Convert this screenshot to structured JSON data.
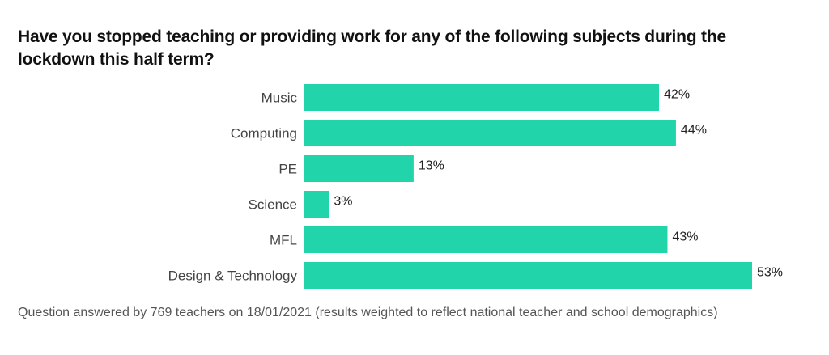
{
  "chart_data": {
    "type": "bar",
    "orientation": "horizontal",
    "title": "Have you stopped teaching or providing work for any of the following subjects during the lockdown this half term?",
    "categories": [
      "Music",
      "Computing",
      "PE",
      "Science",
      "MFL",
      "Design & Technology"
    ],
    "values": [
      42,
      44,
      13,
      3,
      43,
      53
    ],
    "value_labels": [
      "42%",
      "44%",
      "13%",
      "3%",
      "43%",
      "53%"
    ],
    "unit": "%",
    "xlim": [
      0,
      53
    ],
    "bar_color": "#21d4a9",
    "grid": false,
    "legend": "none",
    "footnote": "Question answered by 769 teachers on 18/01/2021 (results weighted to reflect national teacher and school demographics)"
  }
}
